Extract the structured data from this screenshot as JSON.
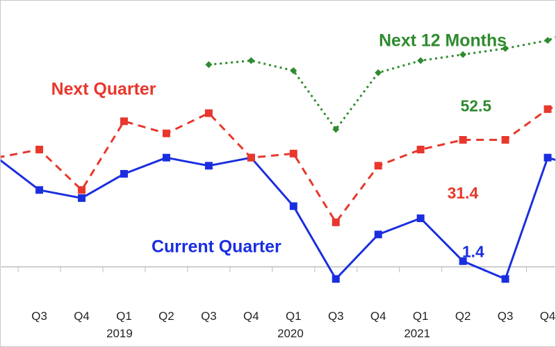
{
  "chart_data": {
    "type": "line",
    "categories": [
      "Q2",
      "Q3",
      "Q4",
      "Q1",
      "Q2",
      "Q3",
      "Q4",
      "Q1",
      "Q2",
      "Q3",
      "Q4",
      "Q1",
      "Q2",
      "Q3",
      "Q4",
      "Q1"
    ],
    "tick_labels": [
      "Q3",
      "Q4",
      "Q1",
      "Q2",
      "Q3",
      "Q4",
      "Q1",
      "Q3",
      "Q4",
      "Q1",
      "Q2",
      "Q3",
      "Q4"
    ],
    "year_labels": [
      "2019",
      "2020",
      "2021"
    ],
    "grid": false,
    "series": [
      {
        "name": "Current Quarter",
        "color": "#1a2ee0",
        "marker": "square",
        "line_style": "solid",
        "values": [
          27,
          19,
          17,
          23,
          27,
          25,
          27,
          15,
          -3,
          8,
          12,
          1.4,
          -3,
          27,
          24,
          null
        ]
      },
      {
        "name": "Next Quarter",
        "color": "#e8372c",
        "marker": "square",
        "line_style": "dashed",
        "values": [
          27,
          29,
          19,
          36,
          33,
          38,
          27,
          28,
          11,
          25,
          29,
          31.4,
          31.4,
          39,
          42,
          null
        ]
      },
      {
        "name": "Next 12 Months",
        "color": "#2e8b2e",
        "marker": "diamond",
        "line_style": "dotted",
        "values": [
          null,
          null,
          null,
          null,
          null,
          50,
          51,
          48.5,
          34,
          48,
          51,
          52.5,
          54,
          56,
          60,
          null
        ]
      }
    ],
    "annotations": [
      {
        "text": "52.5",
        "series": "Next 12 Months"
      },
      {
        "text": "31.4",
        "series": "Next Quarter"
      },
      {
        "text": "1.4",
        "series": "Current Quarter"
      }
    ]
  }
}
